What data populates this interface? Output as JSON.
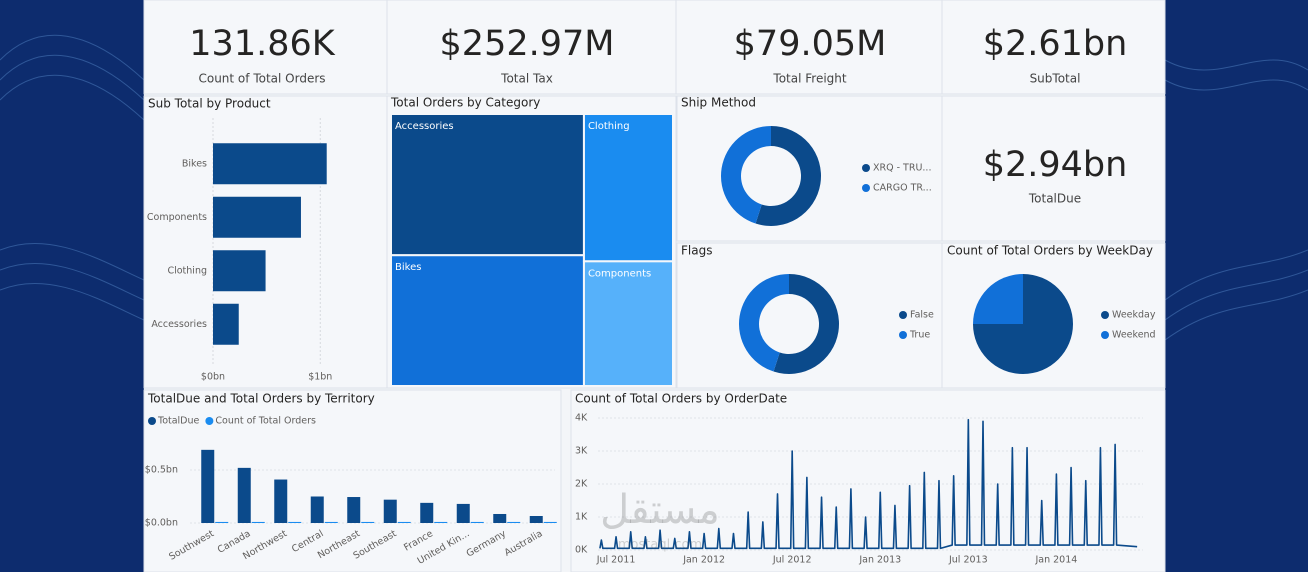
{
  "cards": [
    {
      "value": "131.86K",
      "label": "Count of Total Orders"
    },
    {
      "value": "$252.97M",
      "label": "Total Tax"
    },
    {
      "value": "$79.05M",
      "label": "Total Freight"
    },
    {
      "value": "$2.61bn",
      "label": "SubTotal"
    },
    {
      "value": "$2.94bn",
      "label": "TotalDue"
    }
  ],
  "chart_data": [
    {
      "type": "bar",
      "orientation": "horizontal",
      "title": "Sub Total by Product",
      "categories": [
        "Bikes",
        "Components",
        "Clothing",
        "Accessories"
      ],
      "values": [
        1.06,
        0.82,
        0.49,
        0.24
      ],
      "color": "#0b4a8b",
      "xlim": [
        0,
        1.1
      ],
      "xticks": [
        {
          "value": 0,
          "label": "$0bn"
        },
        {
          "value": 1,
          "label": "$1bn"
        }
      ],
      "grid": true
    },
    {
      "type": "treemap",
      "title": "Total Orders by Category",
      "categories": [
        "Accessories",
        "Bikes",
        "Clothing",
        "Components"
      ],
      "values": [
        27,
        25,
        13,
        11
      ],
      "colors": [
        "#0b4a8b",
        "#1170d8",
        "#1a8cf0",
        "#56b1fa"
      ]
    },
    {
      "type": "donut",
      "title": "Ship Method",
      "categories": [
        "XRQ - TRU...",
        "CARGO TR..."
      ],
      "values": [
        55,
        45
      ],
      "colors": [
        "#0b4a8b",
        "#1170d8"
      ],
      "legend": "right"
    },
    {
      "type": "donut",
      "title": "Flags",
      "categories": [
        "False",
        "True"
      ],
      "values": [
        55,
        45
      ],
      "colors": [
        "#0b4a8b",
        "#1170d8"
      ],
      "legend": "right"
    },
    {
      "type": "pie",
      "title": "Count of Total Orders by WeekDay",
      "categories": [
        "Weekday",
        "Weekend"
      ],
      "values": [
        75,
        25
      ],
      "colors": [
        "#0b4a8b",
        "#1170d8"
      ],
      "legend": "right"
    },
    {
      "type": "column",
      "title": "TotalDue and Total Orders by Territory",
      "categories": [
        "Southwest",
        "Canada",
        "Northwest",
        "Central",
        "Northeast",
        "Southeast",
        "France",
        "United Kin...",
        "Germany",
        "Australia"
      ],
      "series": [
        {
          "name": "TotalDue",
          "color": "#0b4a8b",
          "values": [
            0.69,
            0.52,
            0.41,
            0.25,
            0.245,
            0.22,
            0.19,
            0.18,
            0.085,
            0.066
          ]
        },
        {
          "name": "Count of Total Orders",
          "color": "#1a8cf0",
          "values": [
            0.01,
            0.01,
            0.01,
            0.01,
            0.01,
            0.01,
            0.01,
            0.01,
            0.01,
            0.01
          ]
        }
      ],
      "ylim": [
        0,
        0.83
      ],
      "yticks": [
        {
          "value": 0,
          "label": "$0.0bn"
        },
        {
          "value": 0.5,
          "label": "$0.5bn"
        }
      ],
      "legend": "top-left"
    },
    {
      "type": "line",
      "title": "Count of Total Orders by OrderDate",
      "color": "#0b4a8b",
      "x": [
        4.9,
        5,
        5.1,
        5.9,
        6,
        6.1,
        6.9,
        7,
        7.1,
        7.9,
        8,
        8.1,
        8.9,
        9,
        9.1,
        9.9,
        10,
        10.1,
        10.9,
        11,
        11.1,
        11.9,
        12,
        12.1,
        12.9,
        13,
        13.1,
        13.9,
        14,
        14.1,
        14.9,
        15,
        15.1,
        15.9,
        16,
        16.1,
        16.9,
        17,
        17.1,
        17.9,
        18,
        18.1,
        18.9,
        19,
        19.1,
        19.9,
        20,
        20.1,
        20.9,
        21,
        21.1,
        21.9,
        22,
        22.1,
        22.9,
        23,
        23.1,
        23.9,
        24,
        24.1,
        24.9,
        25,
        25.1,
        25.9,
        26,
        26.1,
        26.9,
        27,
        27.1,
        27.9,
        28,
        28.1,
        28.9,
        29,
        29.1,
        29.9,
        30,
        30.1,
        30.9,
        31,
        31.1,
        31.9,
        32,
        32.1,
        32.9,
        33,
        33.1,
        33.9,
        34,
        34.1,
        34.9,
        35,
        35.1,
        35.9,
        36,
        36.1,
        36.9,
        37,
        37.1,
        37.9,
        38,
        38.1,
        38.9,
        39,
        39.1,
        39.9,
        40,
        40.1,
        41.5
      ],
      "values": [
        0.05,
        0.3,
        0.05,
        0.05,
        0.4,
        0.05,
        0.05,
        0.55,
        0.05,
        0.05,
        0.4,
        0.05,
        0.05,
        0.6,
        0.05,
        0.05,
        0.35,
        0.05,
        0.05,
        0.55,
        0.05,
        0.05,
        0.5,
        0.05,
        0.05,
        0.65,
        0.05,
        0.05,
        0.5,
        0.05,
        0.05,
        1.15,
        0.05,
        0.05,
        0.85,
        0.05,
        0.05,
        1.7,
        0.05,
        0.05,
        3.0,
        0.05,
        0.05,
        2.2,
        0.05,
        0.05,
        1.6,
        0.05,
        0.05,
        1.3,
        0.05,
        0.05,
        1.85,
        0.05,
        0.05,
        1.0,
        0.05,
        0.05,
        1.75,
        0.05,
        0.05,
        1.35,
        0.05,
        0.05,
        1.95,
        0.05,
        0.05,
        2.35,
        0.05,
        0.05,
        2.1,
        0.05,
        0.15,
        2.25,
        0.15,
        0.15,
        3.95,
        0.15,
        0.15,
        3.9,
        0.15,
        0.15,
        2.0,
        0.15,
        0.15,
        3.1,
        0.15,
        0.15,
        3.1,
        0.15,
        0.15,
        1.5,
        0.15,
        0.15,
        2.3,
        0.15,
        0.15,
        2.5,
        0.15,
        0.15,
        2.1,
        0.15,
        0.15,
        3.1,
        0.15,
        0.15,
        3.2,
        0.15,
        0.1
      ],
      "xlim": [
        4.77,
        41.9
      ],
      "xticks": [
        {
          "value": 6,
          "label": "Jul 2011"
        },
        {
          "value": 12,
          "label": "Jan 2012"
        },
        {
          "value": 18,
          "label": "Jul 2012"
        },
        {
          "value": 24,
          "label": "Jan 2013"
        },
        {
          "value": 30,
          "label": "Jul 2013"
        },
        {
          "value": 36,
          "label": "Jan 2014"
        }
      ],
      "ylim": [
        0,
        4.1
      ],
      "yticks": [
        {
          "value": 0,
          "label": "0K"
        },
        {
          "value": 1,
          "label": "1K"
        },
        {
          "value": 2,
          "label": "2K"
        },
        {
          "value": 3,
          "label": "3K"
        },
        {
          "value": 4,
          "label": "4K"
        }
      ],
      "grid": true
    }
  ],
  "watermark": {
    "text": "مستقل",
    "url": "mostaql.com"
  }
}
